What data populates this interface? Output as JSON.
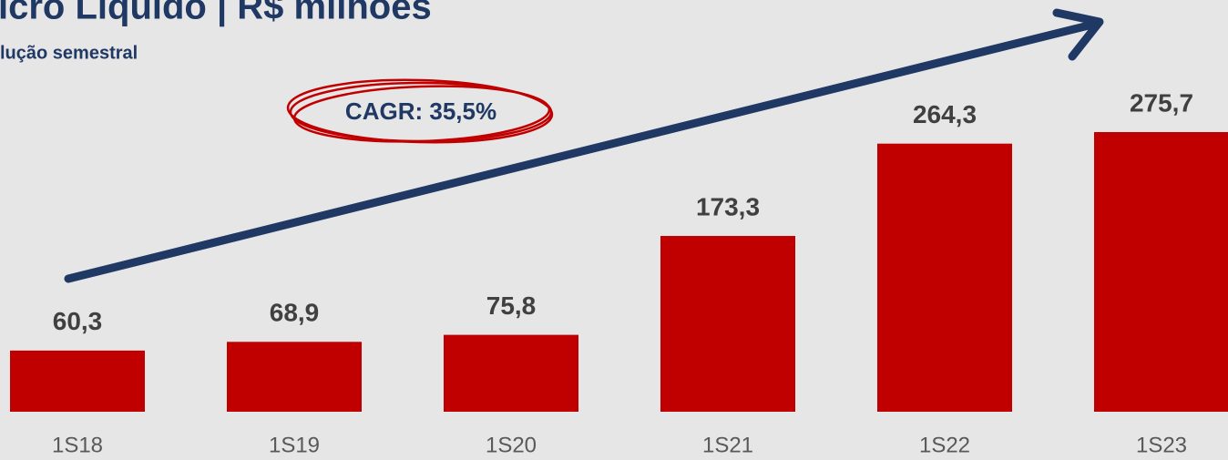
{
  "chart_data": {
    "type": "bar",
    "title": "icro Líquido | R$ milhões",
    "subtitle": "lução semestral",
    "annotation": "CAGR: 35,5%",
    "categories": [
      "1S18",
      "1S19",
      "1S20",
      "1S21",
      "1S22",
      "1S23"
    ],
    "values": [
      60.3,
      68.9,
      75.8,
      173.3,
      264.3,
      275.7
    ],
    "value_labels": [
      "60,3",
      "68,9",
      "75,8",
      "173,3",
      "264,3",
      "275,7"
    ],
    "color": "#c00000"
  }
}
